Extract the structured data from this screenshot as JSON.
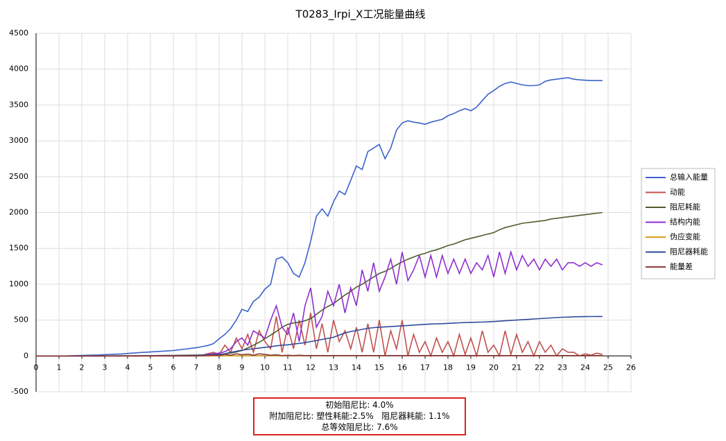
{
  "chart_data": {
    "type": "line",
    "title": "T0283_Irpi_X工况能量曲线",
    "x": [
      0,
      0.25,
      0.5,
      0.75,
      1,
      1.25,
      1.5,
      1.75,
      2,
      2.25,
      2.5,
      2.75,
      3,
      3.25,
      3.5,
      3.75,
      4,
      4.25,
      4.5,
      4.75,
      5,
      5.25,
      5.5,
      5.75,
      6,
      6.25,
      6.5,
      6.75,
      7,
      7.25,
      7.5,
      7.75,
      8,
      8.25,
      8.5,
      8.75,
      9,
      9.25,
      9.5,
      9.75,
      10,
      10.25,
      10.5,
      10.75,
      11,
      11.25,
      11.5,
      11.75,
      12,
      12.25,
      12.5,
      12.75,
      13,
      13.25,
      13.5,
      13.75,
      14,
      14.25,
      14.5,
      14.75,
      15,
      15.25,
      15.5,
      15.75,
      16,
      16.25,
      16.5,
      16.75,
      17,
      17.25,
      17.5,
      17.75,
      18,
      18.25,
      18.5,
      18.75,
      19,
      19.25,
      19.5,
      19.75,
      20,
      20.25,
      20.5,
      20.75,
      21,
      21.25,
      21.5,
      21.75,
      22,
      22.25,
      22.5,
      22.75,
      23,
      23.25,
      23.5,
      23.75,
      24,
      24.25,
      24.5,
      24.75
    ],
    "series": [
      {
        "name": "总输入能量",
        "color": "#3a62cc",
        "values": [
          0,
          0,
          0,
          0,
          0,
          0,
          2,
          5,
          8,
          10,
          12,
          14,
          18,
          20,
          24,
          28,
          35,
          40,
          45,
          50,
          55,
          60,
          65,
          70,
          75,
          85,
          95,
          105,
          115,
          130,
          145,
          170,
          240,
          300,
          380,
          500,
          650,
          620,
          760,
          820,
          930,
          1000,
          1350,
          1380,
          1300,
          1150,
          1100,
          1300,
          1600,
          1950,
          2050,
          1950,
          2150,
          2300,
          2250,
          2450,
          2650,
          2600,
          2850,
          2900,
          2950,
          2750,
          2900,
          3150,
          3250,
          3280,
          3260,
          3250,
          3230,
          3260,
          3280,
          3300,
          3350,
          3380,
          3420,
          3450,
          3420,
          3470,
          3560,
          3650,
          3700,
          3760,
          3800,
          3820,
          3800,
          3780,
          3770,
          3770,
          3780,
          3830,
          3850,
          3860,
          3870,
          3880,
          3860,
          3850,
          3845,
          3840,
          3840,
          3840
        ]
      },
      {
        "name": "动能",
        "color": "#c0504d",
        "values": [
          0,
          0,
          0,
          0,
          0,
          0,
          0,
          0,
          0,
          0,
          0,
          0,
          0,
          0,
          0,
          0,
          0,
          0,
          0,
          0,
          0,
          0,
          0,
          0,
          0,
          0,
          0,
          1,
          2,
          10,
          30,
          50,
          20,
          150,
          50,
          250,
          100,
          300,
          50,
          350,
          200,
          100,
          550,
          50,
          400,
          100,
          500,
          150,
          600,
          100,
          450,
          50,
          500,
          200,
          350,
          100,
          400,
          50,
          450,
          50,
          500,
          0,
          350,
          100,
          500,
          0,
          300,
          50,
          200,
          0,
          250,
          50,
          200,
          0,
          300,
          20,
          250,
          0,
          350,
          50,
          150,
          0,
          350,
          20,
          300,
          50,
          200,
          0,
          200,
          50,
          150,
          0,
          100,
          50,
          50,
          0,
          30,
          10,
          40,
          20
        ]
      },
      {
        "name": "阻尼耗能",
        "color": "#4f5b2a",
        "values": [
          0,
          0,
          0,
          0,
          0,
          0,
          0,
          0,
          0,
          0,
          0,
          0,
          1,
          1,
          2,
          2,
          3,
          3,
          4,
          4,
          5,
          5,
          6,
          7,
          8,
          9,
          10,
          11,
          12,
          14,
          16,
          18,
          22,
          30,
          40,
          55,
          75,
          110,
          150,
          190,
          240,
          290,
          340,
          400,
          440,
          460,
          470,
          490,
          520,
          580,
          640,
          690,
          730,
          790,
          850,
          900,
          960,
          1000,
          1050,
          1100,
          1150,
          1180,
          1220,
          1270,
          1310,
          1350,
          1380,
          1410,
          1430,
          1460,
          1480,
          1510,
          1540,
          1560,
          1590,
          1620,
          1640,
          1660,
          1680,
          1700,
          1720,
          1760,
          1790,
          1810,
          1830,
          1850,
          1860,
          1870,
          1880,
          1890,
          1910,
          1920,
          1930,
          1940,
          1950,
          1960,
          1970,
          1980,
          1990,
          2000
        ]
      },
      {
        "name": "结构内能",
        "color": "#8e2fcf",
        "values": [
          0,
          0,
          0,
          0,
          0,
          0,
          0,
          0,
          0,
          0,
          0,
          0,
          0,
          0,
          0,
          0,
          0,
          0,
          0,
          1,
          1,
          1,
          2,
          2,
          2,
          3,
          3,
          4,
          5,
          10,
          20,
          30,
          40,
          60,
          100,
          200,
          250,
          150,
          350,
          300,
          250,
          500,
          700,
          400,
          300,
          600,
          200,
          700,
          950,
          400,
          550,
          900,
          700,
          1000,
          600,
          950,
          700,
          1200,
          900,
          1300,
          900,
          1100,
          1350,
          1000,
          1450,
          1050,
          1200,
          1400,
          1100,
          1400,
          1100,
          1400,
          1150,
          1350,
          1150,
          1350,
          1150,
          1300,
          1200,
          1400,
          1100,
          1450,
          1150,
          1450,
          1200,
          1400,
          1250,
          1350,
          1200,
          1350,
          1250,
          1350,
          1200,
          1300,
          1300,
          1250,
          1300,
          1250,
          1300,
          1270
        ]
      },
      {
        "name": "伪应变能",
        "color": "#d4a017",
        "values": [
          0,
          0,
          0,
          0,
          0,
          0,
          0,
          0,
          0,
          0,
          0,
          0,
          0,
          0,
          0,
          0,
          0,
          0,
          0,
          0,
          0,
          0,
          0,
          0,
          0,
          0,
          0,
          0,
          0,
          0,
          0,
          0,
          1,
          1,
          1,
          2,
          2,
          2,
          3,
          3,
          3,
          3,
          4,
          4,
          4,
          4,
          4,
          5,
          5,
          5,
          5,
          5,
          5,
          5,
          5,
          5,
          5,
          5,
          5,
          5,
          5,
          5,
          5,
          5,
          5,
          5,
          5,
          5,
          5,
          5,
          5,
          5,
          5,
          5,
          5,
          5,
          5,
          5,
          5,
          5,
          5,
          5,
          5,
          5,
          5,
          5,
          5,
          5,
          5,
          5,
          5,
          5,
          5,
          5,
          5,
          5,
          5,
          5,
          5,
          5
        ]
      },
      {
        "name": "阻尼器耗能",
        "color": "#2f4a9e",
        "values": [
          0,
          0,
          0,
          0,
          0,
          0,
          0,
          0,
          0,
          0,
          0,
          0,
          0,
          0,
          0,
          1,
          1,
          1,
          1,
          2,
          2,
          2,
          3,
          3,
          3,
          4,
          5,
          6,
          8,
          10,
          12,
          15,
          20,
          30,
          50,
          65,
          80,
          90,
          100,
          110,
          120,
          130,
          140,
          150,
          155,
          165,
          175,
          185,
          200,
          215,
          230,
          245,
          260,
          290,
          320,
          340,
          355,
          370,
          385,
          395,
          400,
          405,
          410,
          415,
          420,
          425,
          430,
          435,
          440,
          445,
          448,
          450,
          455,
          458,
          462,
          465,
          468,
          470,
          472,
          475,
          480,
          485,
          490,
          495,
          500,
          505,
          510,
          515,
          520,
          525,
          530,
          535,
          540,
          542,
          545,
          547,
          548,
          549,
          550,
          550
        ]
      },
      {
        "name": "能量差",
        "color": "#8b3a3a",
        "values": [
          0,
          0,
          0,
          0,
          0,
          0,
          0,
          0,
          0,
          0,
          0,
          0,
          0,
          0,
          0,
          0,
          0,
          0,
          0,
          0,
          0,
          0,
          0,
          0,
          0,
          0,
          0,
          0,
          0,
          2,
          5,
          10,
          5,
          20,
          10,
          30,
          15,
          25,
          10,
          30,
          20,
          10,
          15,
          5,
          10,
          5,
          10,
          5,
          5,
          5,
          5,
          5,
          5,
          5,
          5,
          5,
          5,
          5,
          5,
          5,
          5,
          5,
          5,
          5,
          5,
          5,
          5,
          5,
          5,
          5,
          5,
          5,
          5,
          5,
          5,
          5,
          5,
          5,
          5,
          5,
          5,
          5,
          5,
          5,
          5,
          5,
          5,
          5,
          5,
          5,
          5,
          5,
          5,
          5,
          5,
          5,
          5,
          5,
          5,
          5
        ]
      }
    ],
    "xlim": [
      0,
      26
    ],
    "xticks": [
      0,
      1,
      2,
      3,
      4,
      5,
      6,
      7,
      8,
      9,
      10,
      11,
      12,
      13,
      14,
      15,
      16,
      17,
      18,
      19,
      20,
      21,
      22,
      23,
      24,
      25,
      26
    ],
    "ylim": [
      -500,
      4500
    ],
    "yticks": [
      -500,
      0,
      500,
      1000,
      1500,
      2000,
      2500,
      3000,
      3500,
      4000,
      4500
    ],
    "grid": true,
    "legend": "right",
    "annotations": [
      "初始阻尼比: 4.0%",
      "附加阻尼比: 塑性耗能:2.5%   阻尼器耗能: 1.1%",
      "总等效阻尼比: 7.6%"
    ]
  }
}
